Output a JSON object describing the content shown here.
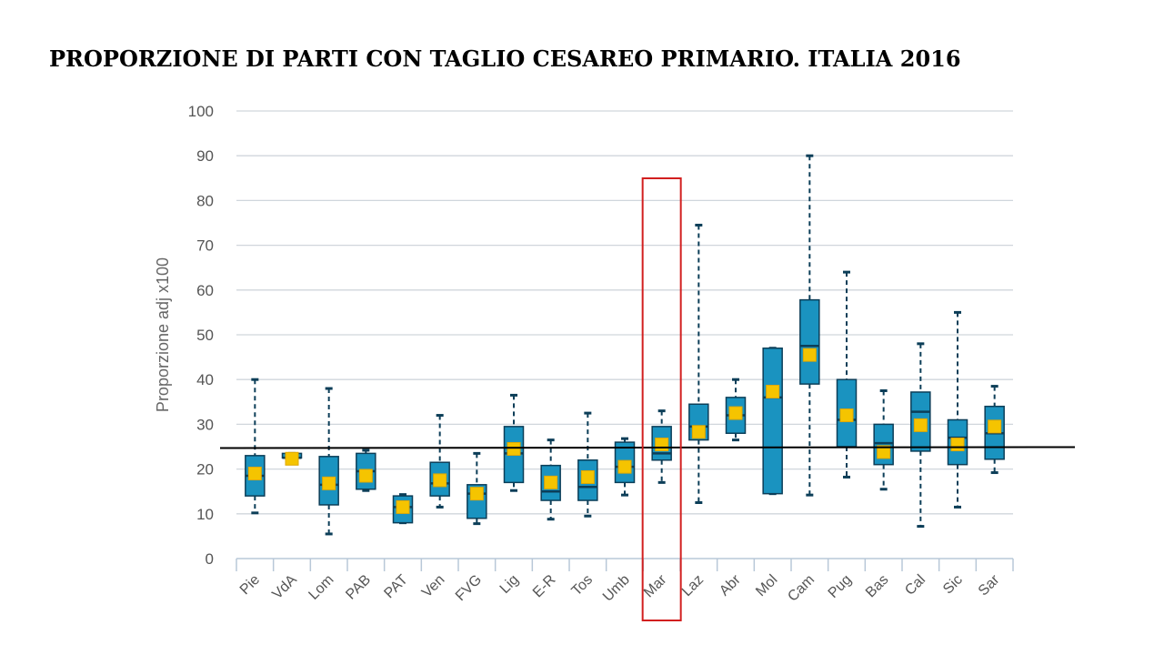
{
  "title": "PROPORZIONE DI PARTI CON TAGLIO CESAREO PRIMARIO. ITALIA 2016",
  "chart_data": {
    "type": "boxplot",
    "ylabel": "Proporzione adj x100",
    "xlabel": "",
    "ylim": [
      0,
      100
    ],
    "yticks": [
      0,
      10,
      20,
      30,
      40,
      50,
      60,
      70,
      80,
      90,
      100
    ],
    "grid": true,
    "reference_line": 24.8,
    "highlighted_category": "Mar",
    "colors": {
      "box": "#1a93c0",
      "box_stroke": "#0c3e58",
      "mean_marker": "#f5c400",
      "grid": "#d0d6dc",
      "reference_line": "#000000",
      "highlight": "#d21f1f"
    },
    "categories": [
      "Pie",
      "VdA",
      "Lom",
      "PAB",
      "PAT",
      "Ven",
      "FVG",
      "Lig",
      "E-R",
      "Tos",
      "Umb",
      "Mar",
      "Laz",
      "Abr",
      "Mol",
      "Cam",
      "Pug",
      "Bas",
      "Cal",
      "Sic",
      "Sar"
    ],
    "boxes": [
      {
        "min": 10.2,
        "q1": 14,
        "median": 18.5,
        "q3": 23,
        "max": 40,
        "mean": 19
      },
      {
        "min": 22.5,
        "q1": 22.5,
        "median": 22.5,
        "q3": 23.5,
        "max": 23.5,
        "mean": 22.3
      },
      {
        "min": 5.5,
        "q1": 12,
        "median": 16.5,
        "q3": 22.8,
        "max": 38,
        "mean": 16.8
      },
      {
        "min": 15.2,
        "q1": 15.5,
        "median": 19.5,
        "q3": 23.5,
        "max": 24.2,
        "mean": 18.5
      },
      {
        "min": 8,
        "q1": 8,
        "median": 11.5,
        "q3": 14,
        "max": 14.3,
        "mean": 11.5
      },
      {
        "min": 11.5,
        "q1": 14,
        "median": 16.8,
        "q3": 21.5,
        "max": 32,
        "mean": 17.5
      },
      {
        "min": 7.8,
        "q1": 9,
        "median": 14.5,
        "q3": 16.5,
        "max": 23.5,
        "mean": 14.5
      },
      {
        "min": 15.2,
        "q1": 17,
        "median": 23.5,
        "q3": 29.5,
        "max": 36.5,
        "mean": 24.5
      },
      {
        "min": 8.8,
        "q1": 13,
        "median": 15,
        "q3": 20.8,
        "max": 26.5,
        "mean": 17
      },
      {
        "min": 9.5,
        "q1": 13,
        "median": 16,
        "q3": 22,
        "max": 32.5,
        "mean": 18.2
      },
      {
        "min": 14.2,
        "q1": 17,
        "median": 20.5,
        "q3": 26,
        "max": 26.8,
        "mean": 20.5
      },
      {
        "min": 17,
        "q1": 22,
        "median": 23.5,
        "q3": 29.5,
        "max": 33,
        "mean": 25.5
      },
      {
        "min": 12.5,
        "q1": 26.5,
        "median": 29.5,
        "q3": 34.5,
        "max": 74.5,
        "mean": 28.3
      },
      {
        "min": 26.5,
        "q1": 28,
        "median": 32,
        "q3": 36,
        "max": 40,
        "mean": 32.5
      },
      {
        "min": 14.5,
        "q1": 14.5,
        "median": 36,
        "q3": 47,
        "max": 47,
        "mean": 37.3
      },
      {
        "min": 14.2,
        "q1": 39,
        "median": 47.5,
        "q3": 57.8,
        "max": 90,
        "mean": 45.5
      },
      {
        "min": 18.2,
        "q1": 25,
        "median": 31,
        "q3": 40,
        "max": 64,
        "mean": 32
      },
      {
        "min": 15.5,
        "q1": 21,
        "median": 25.8,
        "q3": 30,
        "max": 37.5,
        "mean": 23.8
      },
      {
        "min": 7.2,
        "q1": 24,
        "median": 32.8,
        "q3": 37.2,
        "max": 48,
        "mean": 29.8
      },
      {
        "min": 11.5,
        "q1": 21,
        "median": 27,
        "q3": 31,
        "max": 55,
        "mean": 25.5
      },
      {
        "min": 19.2,
        "q1": 22.2,
        "median": 28,
        "q3": 34,
        "max": 38.5,
        "mean": 29.5
      }
    ]
  }
}
